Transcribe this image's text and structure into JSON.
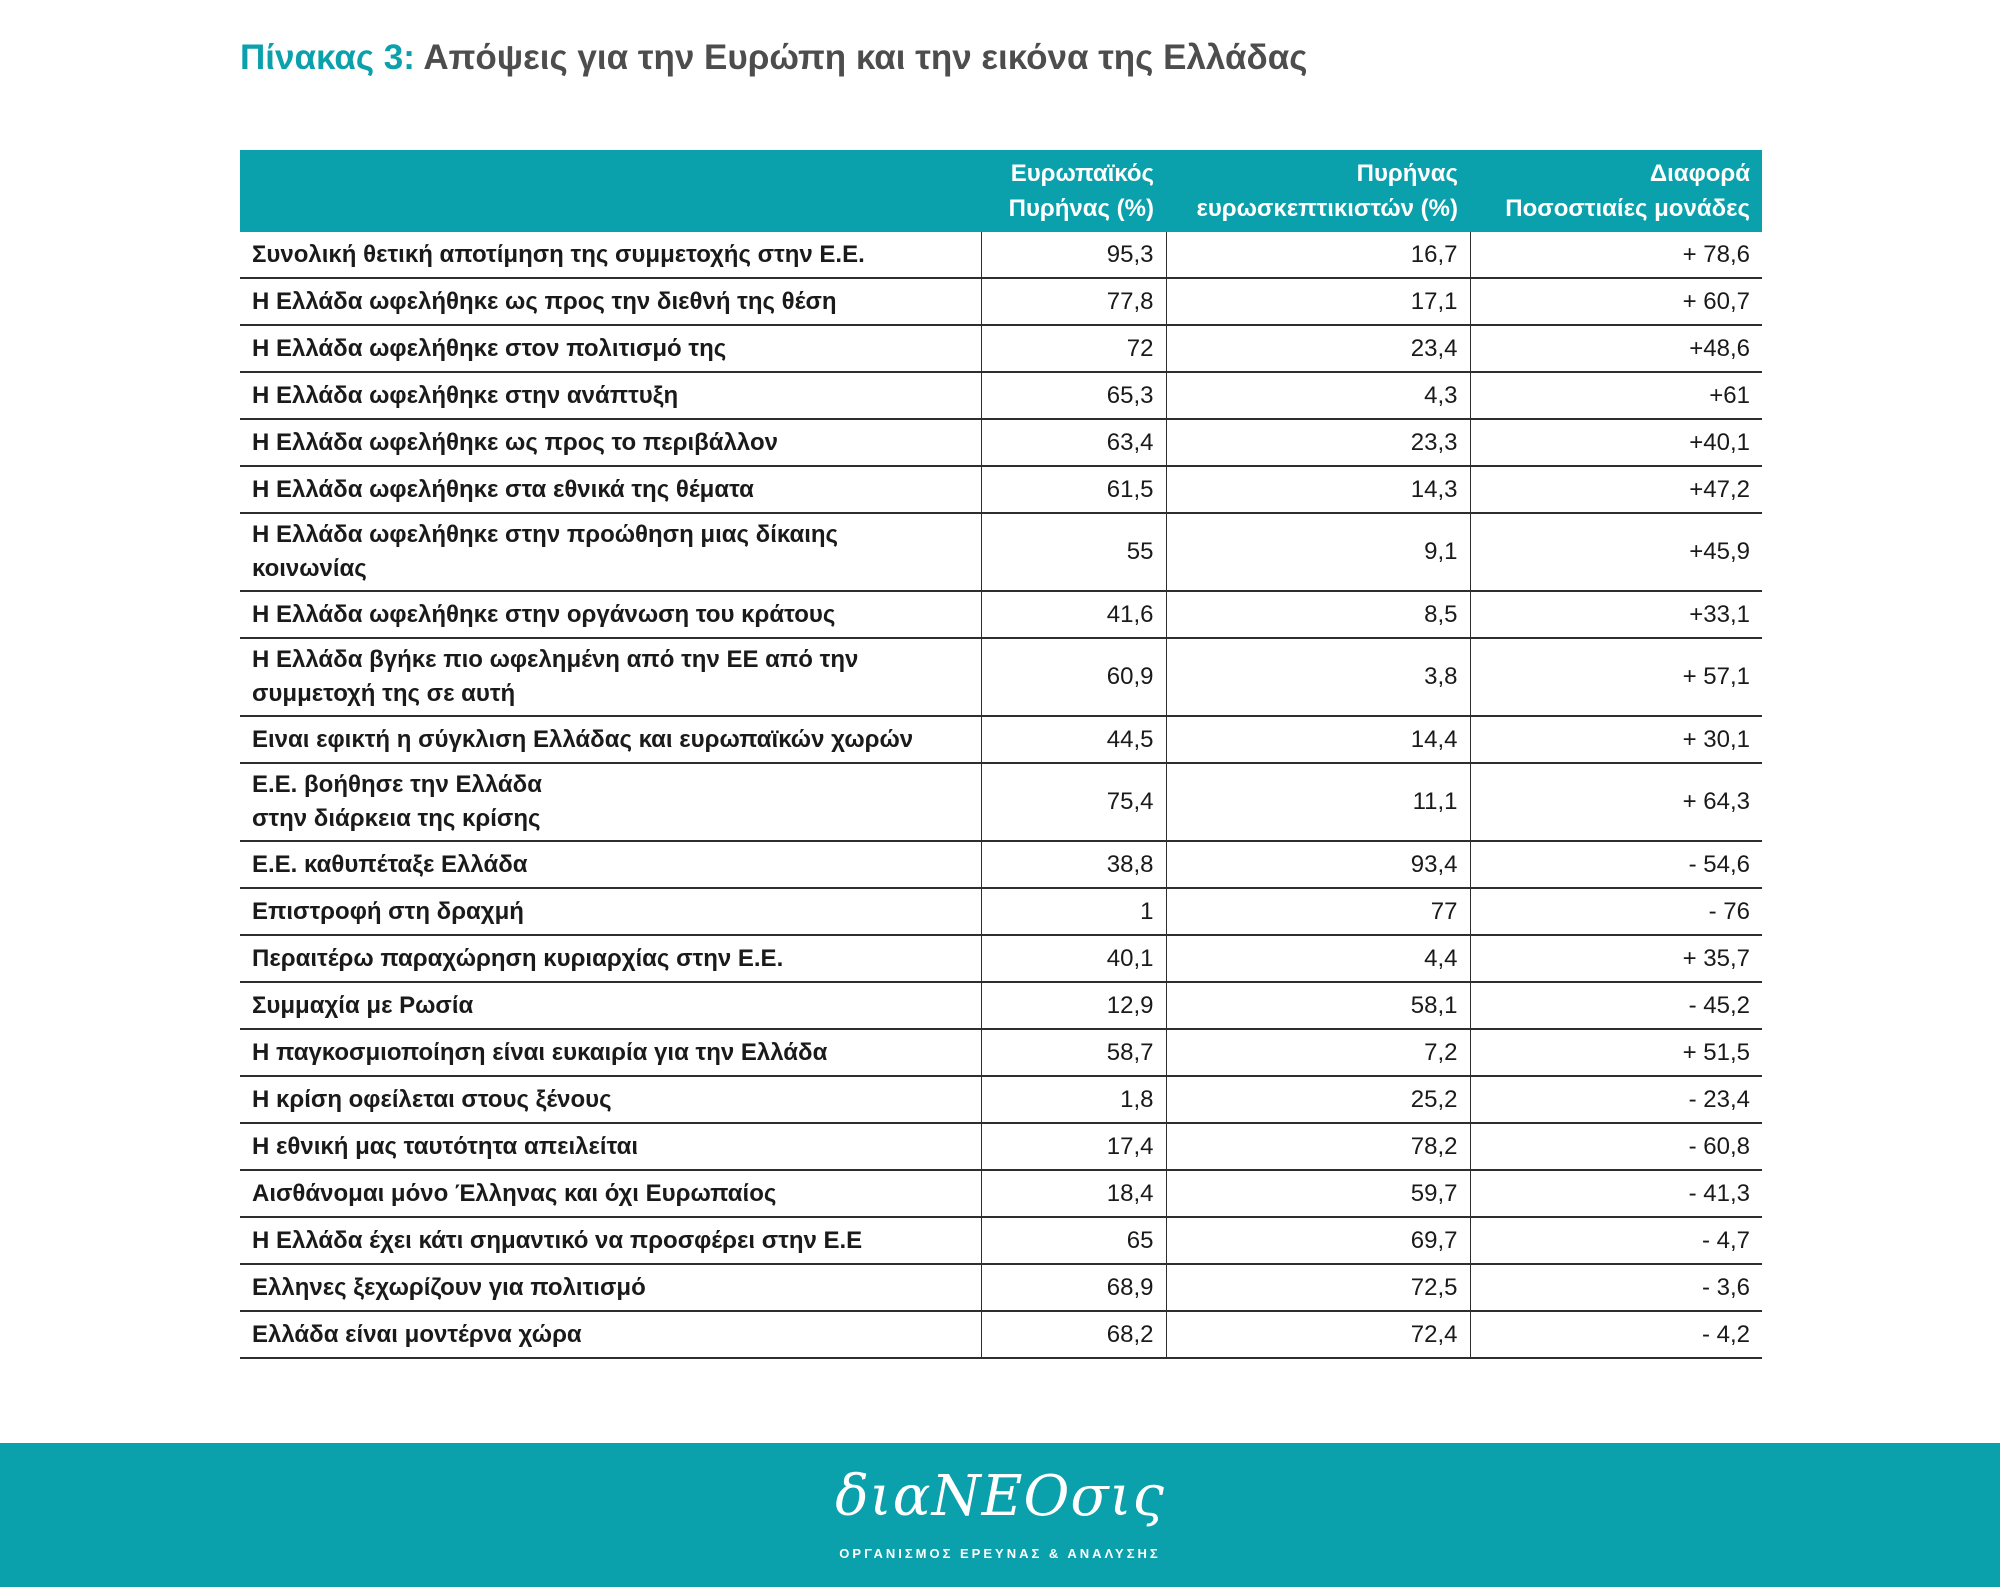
{
  "title": {
    "prefix": "Πίνακας 3:",
    "text": "Απόψεις για την Ευρώπη και την εικόνα της Ελλάδας"
  },
  "table": {
    "headers": [
      "",
      "Ευρωπαϊκός\nΠυρήνας (%)",
      "Πυρήνας\nευρωσκεπτικιστών (%)",
      "Διαφορά\nΠοσοστιαίες μονάδες"
    ],
    "rows": [
      {
        "label": "Συνολική θετική αποτίμηση της συμμετοχής στην Ε.Ε.",
        "eu": "95,3",
        "skeptic": "16,7",
        "diff": "+ 78,6"
      },
      {
        "label": "Η Ελλάδα ωφελήθηκε ως προς την διεθνή της θέση",
        "eu": "77,8",
        "skeptic": "17,1",
        "diff": "+ 60,7"
      },
      {
        "label": "Η Ελλάδα ωφελήθηκε στον πολιτισμό της",
        "eu": "72",
        "skeptic": "23,4",
        "diff": "+48,6"
      },
      {
        "label": "Η Ελλάδα ωφελήθηκε στην ανάπτυξη",
        "eu": "65,3",
        "skeptic": "4,3",
        "diff": "+61"
      },
      {
        "label": "Η Ελλάδα ωφελήθηκε ως προς το περιβάλλον",
        "eu": "63,4",
        "skeptic": "23,3",
        "diff": "+40,1"
      },
      {
        "label": "Η Ελλάδα ωφελήθηκε στα εθνικά της θέματα",
        "eu": "61,5",
        "skeptic": "14,3",
        "diff": "+47,2"
      },
      {
        "label": "Η Ελλάδα ωφελήθηκε στην προώθηση μιας δίκαιης\nκοινωνίας",
        "eu": "55",
        "skeptic": "9,1",
        "diff": "+45,9"
      },
      {
        "label": "Η Ελλάδα ωφελήθηκε στην οργάνωση του κράτους",
        "eu": "41,6",
        "skeptic": "8,5",
        "diff": "+33,1"
      },
      {
        "label": "Η Ελλάδα βγήκε πιο ωφελημένη από την ΕΕ από την\nσυμμετοχή της σε αυτή",
        "eu": "60,9",
        "skeptic": "3,8",
        "diff": "+ 57,1"
      },
      {
        "label": "Ειναι εφικτή η σύγκλιση Ελλάδας και ευρωπαϊκών χωρών",
        "eu": "44,5",
        "skeptic": "14,4",
        "diff": "+ 30,1"
      },
      {
        "label": "Ε.Ε. βοήθησε την Ελλάδα\nστην διάρκεια της κρίσης",
        "eu": "75,4",
        "skeptic": "11,1",
        "diff": "+ 64,3"
      },
      {
        "label": "Ε.Ε. καθυπέταξε Ελλάδα",
        "eu": "38,8",
        "skeptic": "93,4",
        "diff": "- 54,6"
      },
      {
        "label": "Επιστροφή στη δραχμή",
        "eu": "1",
        "skeptic": "77",
        "diff": "- 76"
      },
      {
        "label": "Περαιτέρω παραχώρηση κυριαρχίας στην Ε.Ε.",
        "eu": "40,1",
        "skeptic": "4,4",
        "diff": "+ 35,7"
      },
      {
        "label": "Συμμαχία με Ρωσία",
        "eu": "12,9",
        "skeptic": "58,1",
        "diff": "- 45,2"
      },
      {
        "label": "Η παγκοσμιοποίηση είναι ευκαιρία για την Ελλάδα",
        "eu": "58,7",
        "skeptic": "7,2",
        "diff": "+ 51,5"
      },
      {
        "label": "Η κρίση οφείλεται στους ξένους",
        "eu": "1,8",
        "skeptic": "25,2",
        "diff": "- 23,4"
      },
      {
        "label": "Η εθνική μας ταυτότητα απειλείται",
        "eu": "17,4",
        "skeptic": "78,2",
        "diff": "- 60,8"
      },
      {
        "label": "Αισθάνομαι μόνο Έλληνας και όχι Ευρωπαίος",
        "eu": "18,4",
        "skeptic": "59,7",
        "diff": "- 41,3"
      },
      {
        "label": "Η Ελλάδα έχει κάτι σημαντικό να προσφέρει στην Ε.Ε",
        "eu": "65",
        "skeptic": "69,7",
        "diff": "- 4,7"
      },
      {
        "label": "Ελληνες ξεχωρίζουν για πολιτισμό",
        "eu": "68,9",
        "skeptic": "72,5",
        "diff": "- 3,6"
      },
      {
        "label": "Ελλάδα είναι μοντέρνα χώρα",
        "eu": "68,2",
        "skeptic": "72,4",
        "diff": "- 4,2"
      }
    ]
  },
  "footer": {
    "logo_text": "διαNEOσις",
    "tagline": "ΟΡΓΑΝΙΣΜΟΣ ΕΡΕΥΝΑΣ & ΑΝΑΛΥΣΗΣ"
  },
  "colors": {
    "accent": "#0aa0ac",
    "title_gray": "#4d4d4d",
    "rule": "#2e2e2e"
  }
}
